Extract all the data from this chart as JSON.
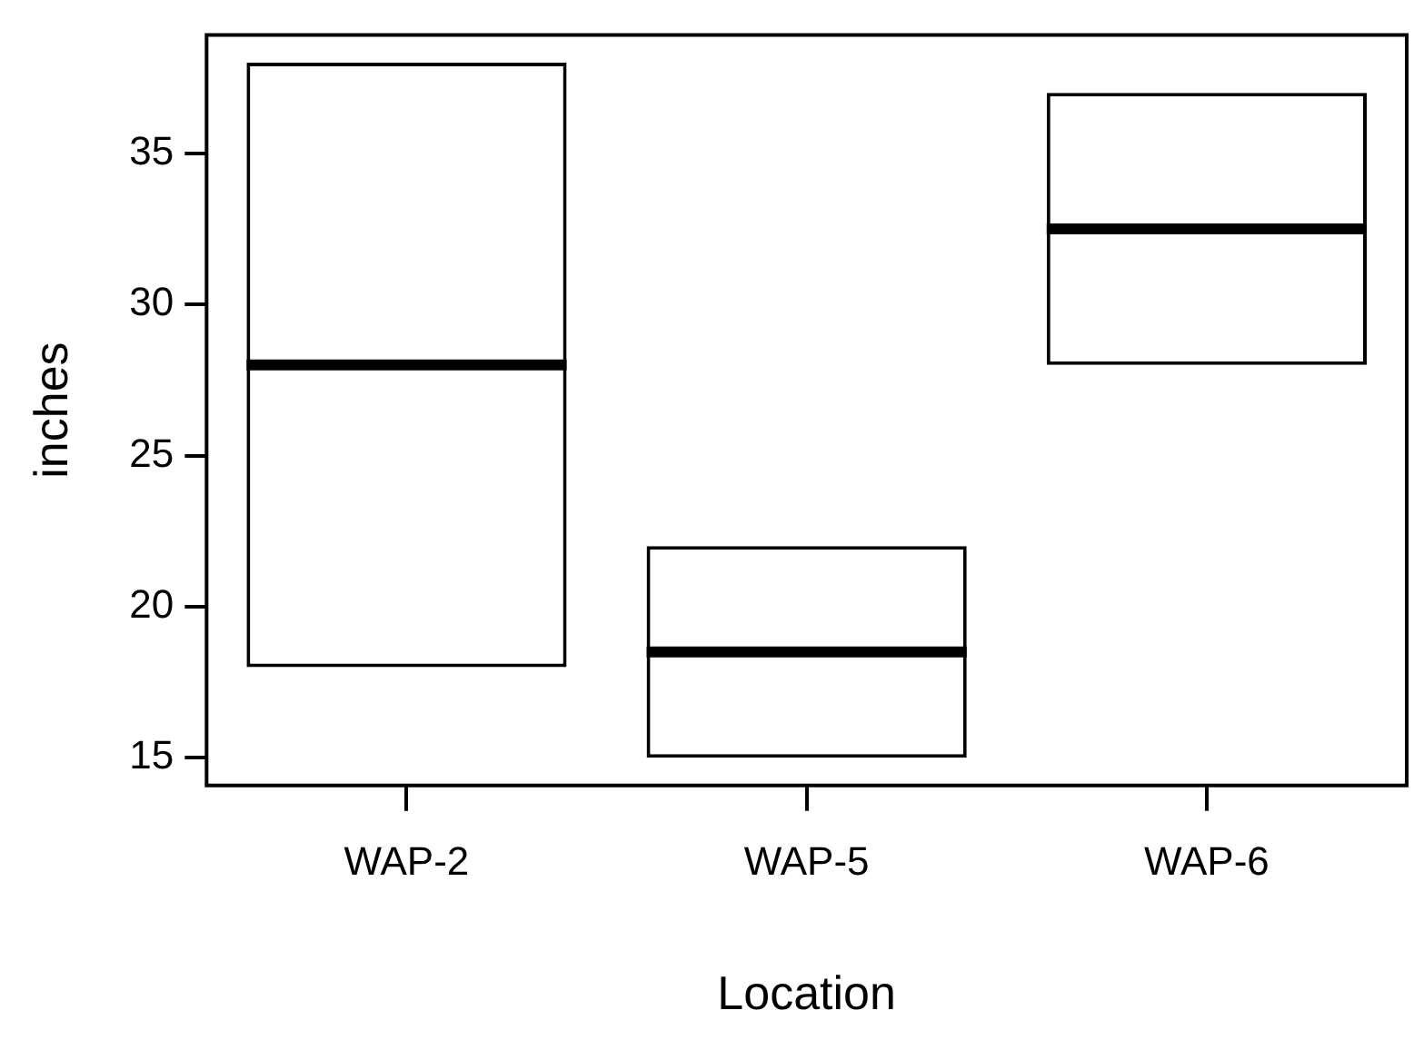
{
  "chart_data": {
    "type": "box",
    "xlabel": "Location",
    "ylabel": "inches",
    "categories": [
      "WAP-2",
      "WAP-5",
      "WAP-6"
    ],
    "boxes": [
      {
        "low": 18,
        "q1": 18,
        "median": 28,
        "q3": 38,
        "high": 38
      },
      {
        "low": 15,
        "q1": 15,
        "median": 18.5,
        "q3": 22,
        "high": 22
      },
      {
        "low": 28,
        "q1": 28,
        "median": 32.5,
        "q3": 37,
        "high": 37
      }
    ],
    "ylim": [
      14.08,
      38.92
    ],
    "yticks": [
      15,
      20,
      25,
      30,
      35
    ],
    "grid": false,
    "legend": false
  }
}
